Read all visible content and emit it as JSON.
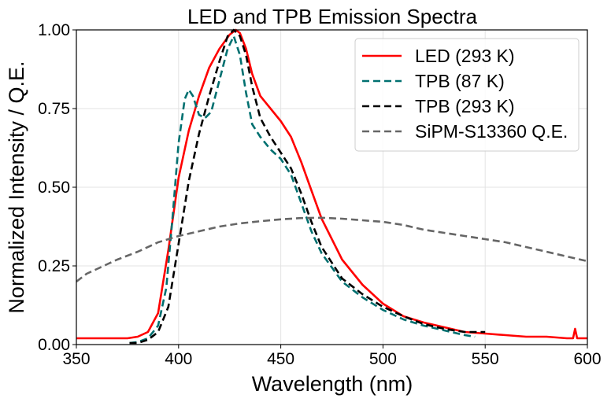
{
  "chart_data": {
    "type": "line",
    "title": "LED and TPB Emission Spectra",
    "xlabel": "Wavelength (nm)",
    "ylabel": "Normalized Intensity / Q.E.",
    "xlim": [
      350,
      600
    ],
    "ylim": [
      0,
      1
    ],
    "xticks": [
      350,
      400,
      450,
      500,
      550,
      600
    ],
    "xtick_labels": [
      "350",
      "400",
      "450",
      "500",
      "550",
      "600"
    ],
    "yticks": [
      0,
      0.25,
      0.5,
      0.75,
      1.0
    ],
    "ytick_labels": [
      "0.00",
      "0.25",
      "0.50",
      "0.75",
      "1.00"
    ],
    "grid": true,
    "legend_position": "top-right",
    "series": [
      {
        "name": "LED (293 K)",
        "color": "#ff0000",
        "dash": "solid",
        "x": [
          350,
          360,
          370,
          375,
          380,
          385,
          390,
          395,
          400,
          405,
          410,
          415,
          420,
          425,
          428,
          430,
          433,
          436,
          440,
          445,
          450,
          455,
          460,
          465,
          470,
          480,
          490,
          500,
          510,
          520,
          530,
          540,
          550,
          560,
          570,
          580,
          590,
          593,
          594,
          595,
          600
        ],
        "y": [
          0.02,
          0.02,
          0.02,
          0.02,
          0.025,
          0.04,
          0.1,
          0.3,
          0.53,
          0.68,
          0.79,
          0.88,
          0.94,
          0.985,
          1.0,
          0.99,
          0.94,
          0.86,
          0.79,
          0.75,
          0.71,
          0.66,
          0.58,
          0.49,
          0.4,
          0.27,
          0.19,
          0.13,
          0.09,
          0.07,
          0.055,
          0.04,
          0.035,
          0.03,
          0.025,
          0.025,
          0.02,
          0.02,
          0.05,
          0.02,
          0.02
        ]
      },
      {
        "name": "TPB (87 K)",
        "color": "#007070",
        "dash": "dashed",
        "x": [
          376,
          380,
          385,
          390,
          394,
          397,
          400,
          403,
          405,
          407,
          410,
          413,
          416,
          420,
          424,
          427,
          430,
          433,
          436,
          440,
          445,
          450,
          455,
          460,
          465,
          470,
          480,
          490,
          500,
          510,
          520,
          530,
          540,
          545
        ],
        "y": [
          0.005,
          0.008,
          0.02,
          0.06,
          0.18,
          0.4,
          0.64,
          0.78,
          0.81,
          0.79,
          0.73,
          0.72,
          0.74,
          0.84,
          0.94,
          0.98,
          0.92,
          0.8,
          0.7,
          0.66,
          0.62,
          0.59,
          0.54,
          0.45,
          0.36,
          0.29,
          0.2,
          0.15,
          0.11,
          0.08,
          0.06,
          0.045,
          0.03,
          0.025
        ]
      },
      {
        "name": "TPB (293 K)",
        "color": "#000000",
        "dash": "dashed",
        "x": [
          376,
          380,
          385,
          390,
          395,
          400,
          405,
          410,
          415,
          420,
          424,
          427,
          430,
          433,
          436,
          440,
          445,
          450,
          455,
          460,
          465,
          470,
          480,
          490,
          500,
          510,
          520,
          530,
          540,
          550
        ],
        "y": [
          0.005,
          0.005,
          0.015,
          0.04,
          0.12,
          0.32,
          0.52,
          0.67,
          0.79,
          0.9,
          0.98,
          1.0,
          0.98,
          0.92,
          0.82,
          0.72,
          0.66,
          0.61,
          0.56,
          0.48,
          0.39,
          0.31,
          0.21,
          0.16,
          0.12,
          0.09,
          0.065,
          0.05,
          0.04,
          0.04
        ]
      },
      {
        "name": "SiPM-S13360 Q.E.",
        "color": "#666666",
        "dash": "dashed",
        "x": [
          350,
          355,
          360,
          365,
          370,
          380,
          390,
          400,
          410,
          420,
          430,
          440,
          450,
          460,
          470,
          480,
          490,
          500,
          510,
          520,
          530,
          540,
          550,
          560,
          570,
          580,
          590,
          600
        ],
        "y": [
          0.2,
          0.225,
          0.24,
          0.255,
          0.27,
          0.295,
          0.325,
          0.345,
          0.36,
          0.375,
          0.385,
          0.392,
          0.398,
          0.402,
          0.403,
          0.4,
          0.395,
          0.39,
          0.38,
          0.365,
          0.355,
          0.345,
          0.335,
          0.325,
          0.31,
          0.295,
          0.28,
          0.265
        ]
      }
    ]
  }
}
